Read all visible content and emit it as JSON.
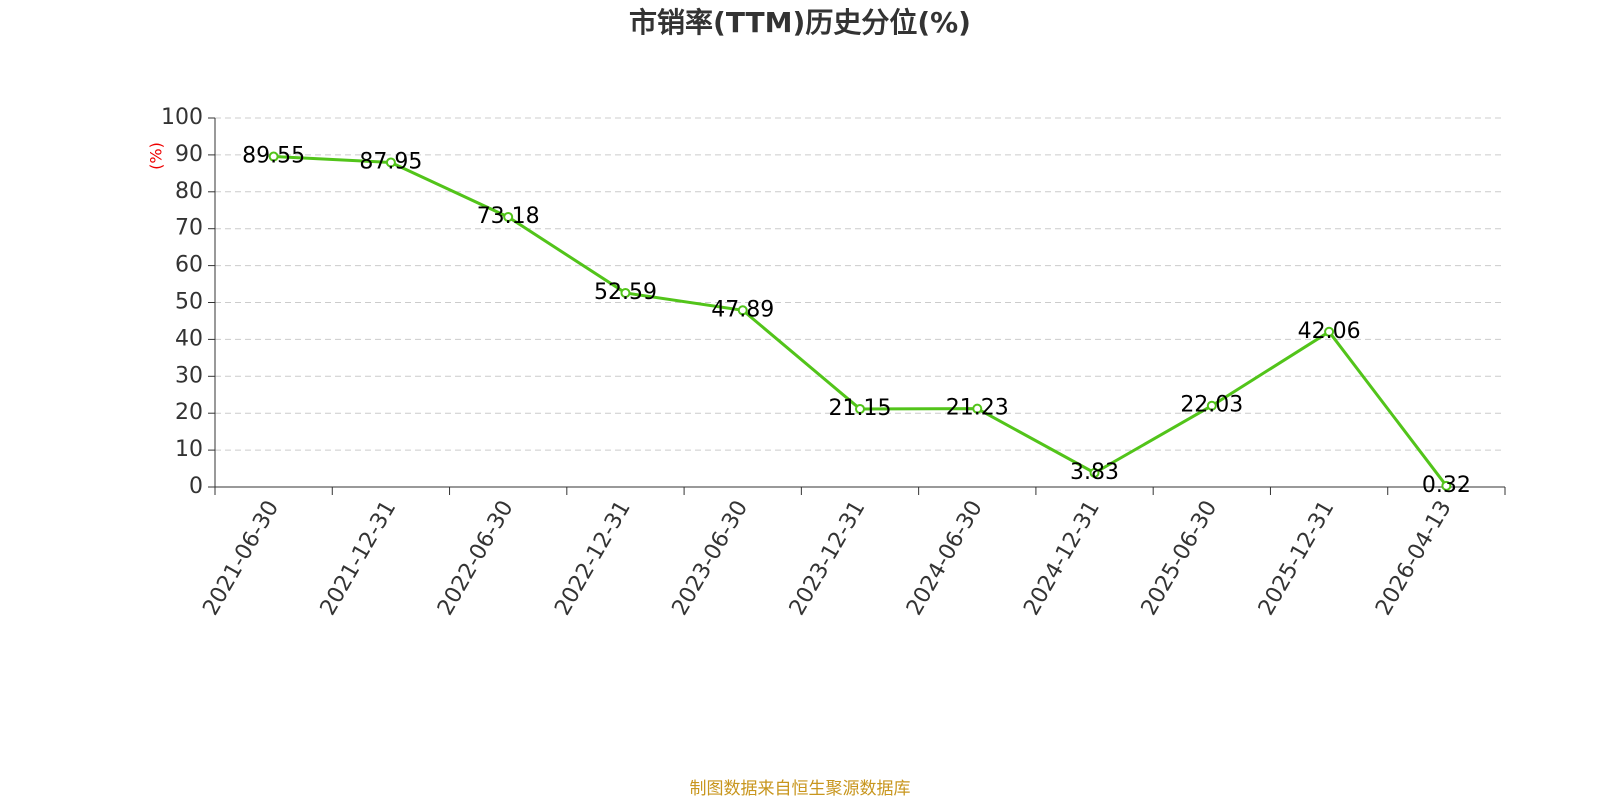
{
  "chart_data": {
    "type": "line",
    "title": "市销率(TTM)历史分位(%)",
    "y_label": "(%)",
    "categories": [
      "2021-06-30",
      "2021-12-31",
      "2022-06-30",
      "2022-12-31",
      "2023-06-30",
      "2023-12-31",
      "2024-06-30",
      "2024-12-31",
      "2025-06-30",
      "2025-12-31",
      "2026-04-13"
    ],
    "values": [
      89.55,
      87.95,
      73.18,
      52.59,
      47.89,
      21.15,
      21.23,
      3.83,
      22.03,
      42.06,
      0.32
    ],
    "color": "#52c41a",
    "ylim": [
      0,
      100
    ],
    "yticks": [
      0,
      10,
      20,
      30,
      40,
      50,
      60,
      70,
      80,
      90,
      100
    ],
    "grid": true,
    "source": "制图数据来自恒生聚源数据库"
  }
}
